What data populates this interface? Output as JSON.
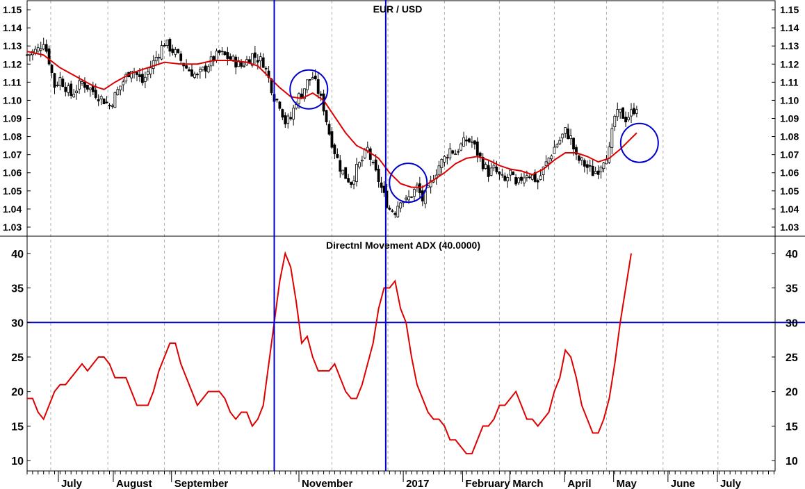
{
  "chart_data": [
    {
      "type": "candlestick",
      "title": "EUR / USD",
      "ylim": [
        1.025,
        1.155
      ],
      "yticks": [
        1.03,
        1.04,
        1.05,
        1.06,
        1.07,
        1.08,
        1.09,
        1.1,
        1.11,
        1.12,
        1.13,
        1.14,
        1.15
      ],
      "ytick_labels": [
        "1.03",
        "1.04",
        "1.05",
        "1.06",
        "1.07",
        "1.08",
        "1.09",
        "1.10",
        "1.11",
        "1.12",
        "1.13",
        "1.14",
        "1.15"
      ],
      "moving_average_color": "#dd0000",
      "candle_color": "#000000",
      "price_path": [
        [
          0,
          1.125
        ],
        [
          2,
          1.128
        ],
        [
          3,
          1.133
        ],
        [
          4,
          1.122
        ],
        [
          5,
          1.108
        ],
        [
          6,
          1.112
        ],
        [
          8,
          1.103
        ],
        [
          10,
          1.11
        ],
        [
          12,
          1.105
        ],
        [
          14,
          1.1
        ],
        [
          15,
          1.097
        ],
        [
          17,
          1.108
        ],
        [
          19,
          1.118
        ],
        [
          21,
          1.11
        ],
        [
          23,
          1.121
        ],
        [
          25,
          1.132
        ],
        [
          27,
          1.126
        ],
        [
          29,
          1.118
        ],
        [
          31,
          1.113
        ],
        [
          33,
          1.12
        ],
        [
          35,
          1.126
        ],
        [
          37,
          1.123
        ],
        [
          39,
          1.119
        ],
        [
          41,
          1.125
        ],
        [
          43,
          1.121
        ],
        [
          44,
          1.112
        ],
        [
          45,
          1.102
        ],
        [
          46,
          1.098
        ],
        [
          47,
          1.088
        ],
        [
          48,
          1.09
        ],
        [
          49,
          1.1
        ],
        [
          50,
          1.104
        ],
        [
          51,
          1.11
        ],
        [
          52,
          1.113
        ],
        [
          53,
          1.105
        ],
        [
          54,
          1.096
        ],
        [
          55,
          1.082
        ],
        [
          56,
          1.072
        ],
        [
          57,
          1.063
        ],
        [
          58,
          1.058
        ],
        [
          59,
          1.055
        ],
        [
          60,
          1.062
        ],
        [
          61,
          1.067
        ],
        [
          62,
          1.073
        ],
        [
          63,
          1.063
        ],
        [
          64,
          1.056
        ],
        [
          65,
          1.047
        ],
        [
          66,
          1.04
        ],
        [
          67,
          1.039
        ],
        [
          68,
          1.046
        ],
        [
          69,
          1.044
        ],
        [
          70,
          1.048
        ],
        [
          71,
          1.052
        ],
        [
          72,
          1.045
        ],
        [
          73,
          1.05
        ],
        [
          74,
          1.058
        ],
        [
          75,
          1.064
        ],
        [
          76,
          1.068
        ],
        [
          77,
          1.073
        ],
        [
          78,
          1.071
        ],
        [
          79,
          1.075
        ],
        [
          80,
          1.078
        ],
        [
          81,
          1.077
        ],
        [
          82,
          1.071
        ],
        [
          83,
          1.065
        ],
        [
          84,
          1.06
        ],
        [
          85,
          1.062
        ],
        [
          86,
          1.058
        ],
        [
          87,
          1.055
        ],
        [
          88,
          1.06
        ],
        [
          89,
          1.052
        ],
        [
          90,
          1.057
        ],
        [
          91,
          1.06
        ],
        [
          92,
          1.058
        ],
        [
          93,
          1.055
        ],
        [
          94,
          1.062
        ],
        [
          95,
          1.068
        ],
        [
          96,
          1.074
        ],
        [
          97,
          1.078
        ],
        [
          98,
          1.083
        ],
        [
          99,
          1.079
        ],
        [
          100,
          1.068
        ],
        [
          101,
          1.066
        ],
        [
          102,
          1.063
        ],
        [
          103,
          1.06
        ],
        [
          104,
          1.062
        ],
        [
          105,
          1.068
        ],
        [
          106,
          1.072
        ],
        [
          107,
          1.091
        ],
        [
          108,
          1.093
        ],
        [
          109,
          1.09
        ],
        [
          110,
          1.093
        ],
        [
          111,
          1.097
        ]
      ],
      "moving_average": [
        [
          0,
          1.127
        ],
        [
          3,
          1.125
        ],
        [
          6,
          1.118
        ],
        [
          9,
          1.113
        ],
        [
          12,
          1.108
        ],
        [
          14,
          1.106
        ],
        [
          16,
          1.11
        ],
        [
          19,
          1.115
        ],
        [
          22,
          1.118
        ],
        [
          25,
          1.121
        ],
        [
          28,
          1.12
        ],
        [
          31,
          1.12
        ],
        [
          34,
          1.122
        ],
        [
          37,
          1.122
        ],
        [
          40,
          1.121
        ],
        [
          42,
          1.119
        ],
        [
          44,
          1.113
        ],
        [
          46,
          1.107
        ],
        [
          48,
          1.102
        ],
        [
          50,
          1.101
        ],
        [
          52,
          1.104
        ],
        [
          54,
          1.1
        ],
        [
          56,
          1.091
        ],
        [
          58,
          1.082
        ],
        [
          60,
          1.075
        ],
        [
          62,
          1.072
        ],
        [
          64,
          1.068
        ],
        [
          66,
          1.06
        ],
        [
          68,
          1.054
        ],
        [
          70,
          1.052
        ],
        [
          72,
          1.052
        ],
        [
          74,
          1.056
        ],
        [
          76,
          1.06
        ],
        [
          78,
          1.065
        ],
        [
          80,
          1.068
        ],
        [
          82,
          1.069
        ],
        [
          84,
          1.067
        ],
        [
          86,
          1.064
        ],
        [
          88,
          1.062
        ],
        [
          90,
          1.061
        ],
        [
          92,
          1.059
        ],
        [
          94,
          1.062
        ],
        [
          96,
          1.067
        ],
        [
          98,
          1.071
        ],
        [
          100,
          1.071
        ],
        [
          102,
          1.069
        ],
        [
          104,
          1.066
        ],
        [
          106,
          1.068
        ],
        [
          108,
          1.073
        ],
        [
          110,
          1.079
        ],
        [
          111,
          1.082
        ]
      ]
    },
    {
      "type": "line",
      "title": "Directnl Movement ADX (40.0000)",
      "ylim": [
        8.5,
        42.5
      ],
      "yticks": [
        10,
        15,
        20,
        25,
        30,
        35,
        40
      ],
      "ytick_labels": [
        "10",
        "15",
        "20",
        "25",
        "30",
        "35",
        "40"
      ],
      "reference_line": 30,
      "reference_line_color": "#0000cc",
      "line_color": "#dd0000",
      "adx": [
        [
          0,
          19
        ],
        [
          1,
          19
        ],
        [
          2,
          17
        ],
        [
          3,
          16
        ],
        [
          4,
          18
        ],
        [
          5,
          20
        ],
        [
          6,
          21
        ],
        [
          7,
          21
        ],
        [
          8,
          22
        ],
        [
          9,
          23
        ],
        [
          10,
          24
        ],
        [
          11,
          23
        ],
        [
          12,
          24
        ],
        [
          13,
          25
        ],
        [
          14,
          25
        ],
        [
          15,
          24
        ],
        [
          16,
          22
        ],
        [
          17,
          22
        ],
        [
          18,
          22
        ],
        [
          19,
          20
        ],
        [
          20,
          18
        ],
        [
          21,
          18
        ],
        [
          22,
          18
        ],
        [
          23,
          20
        ],
        [
          24,
          23
        ],
        [
          25,
          25
        ],
        [
          26,
          27
        ],
        [
          27,
          27
        ],
        [
          28,
          24
        ],
        [
          29,
          22
        ],
        [
          30,
          20
        ],
        [
          31,
          18
        ],
        [
          32,
          19
        ],
        [
          33,
          20
        ],
        [
          34,
          20
        ],
        [
          35,
          20
        ],
        [
          36,
          19
        ],
        [
          37,
          17
        ],
        [
          38,
          16
        ],
        [
          39,
          17
        ],
        [
          40,
          17
        ],
        [
          41,
          15
        ],
        [
          42,
          16
        ],
        [
          43,
          18
        ],
        [
          44,
          24
        ],
        [
          45,
          30
        ],
        [
          46,
          36
        ],
        [
          47,
          40
        ],
        [
          48,
          38
        ],
        [
          49,
          33
        ],
        [
          50,
          27
        ],
        [
          51,
          28
        ],
        [
          52,
          25
        ],
        [
          53,
          23
        ],
        [
          54,
          23
        ],
        [
          55,
          23
        ],
        [
          56,
          24
        ],
        [
          57,
          22
        ],
        [
          58,
          20
        ],
        [
          59,
          19
        ],
        [
          60,
          19
        ],
        [
          61,
          21
        ],
        [
          62,
          24
        ],
        [
          63,
          27
        ],
        [
          64,
          32
        ],
        [
          65,
          35
        ],
        [
          66,
          35
        ],
        [
          67,
          36
        ],
        [
          68,
          32
        ],
        [
          69,
          30
        ],
        [
          70,
          25
        ],
        [
          71,
          21
        ],
        [
          72,
          19
        ],
        [
          73,
          17
        ],
        [
          74,
          16
        ],
        [
          75,
          16
        ],
        [
          76,
          15
        ],
        [
          77,
          13
        ],
        [
          78,
          13
        ],
        [
          79,
          12
        ],
        [
          80,
          11
        ],
        [
          81,
          11
        ],
        [
          82,
          13
        ],
        [
          83,
          15
        ],
        [
          84,
          15
        ],
        [
          85,
          16
        ],
        [
          86,
          18
        ],
        [
          87,
          18
        ],
        [
          88,
          19
        ],
        [
          89,
          20
        ],
        [
          90,
          18
        ],
        [
          91,
          16
        ],
        [
          92,
          16
        ],
        [
          93,
          15
        ],
        [
          94,
          16
        ],
        [
          95,
          17
        ],
        [
          96,
          20
        ],
        [
          97,
          22
        ],
        [
          98,
          26
        ],
        [
          99,
          25
        ],
        [
          100,
          22
        ],
        [
          101,
          18
        ],
        [
          102,
          16
        ],
        [
          103,
          14
        ],
        [
          104,
          14
        ],
        [
          105,
          16
        ],
        [
          106,
          19
        ],
        [
          107,
          24
        ],
        [
          108,
          30
        ],
        [
          109,
          35
        ],
        [
          110,
          40
        ]
      ]
    }
  ],
  "x_axis": {
    "months": [
      {
        "label": "July",
        "pos": 6.2
      },
      {
        "label": "August",
        "pos": 16.2
      },
      {
        "label": "September",
        "pos": 26.8
      },
      {
        "label": "November",
        "pos": 50
      },
      {
        "label": "2017",
        "pos": 69
      },
      {
        "label": "February",
        "pos": 79.8
      },
      {
        "label": "March",
        "pos": 88.4
      },
      {
        "label": "April",
        "pos": 98.4
      },
      {
        "label": "May",
        "pos": 107.3
      },
      {
        "label": "June",
        "pos": 117.2
      },
      {
        "label": "July",
        "pos": 126.2
      }
    ],
    "grid_positions": [
      4.3,
      14.7,
      25,
      34.9,
      45,
      55.5,
      65.7,
      76,
      86,
      96,
      105.5,
      115.8,
      125.8
    ]
  },
  "markers": {
    "vertical_lines": [
      45,
      65.3
    ],
    "line_color": "#0000cc",
    "circles": [
      {
        "x": 51.3,
        "y": 1.106
      },
      {
        "x": 69.4,
        "y": 1.0545
      },
      {
        "x": 111.5,
        "y": 1.0765
      }
    ]
  }
}
